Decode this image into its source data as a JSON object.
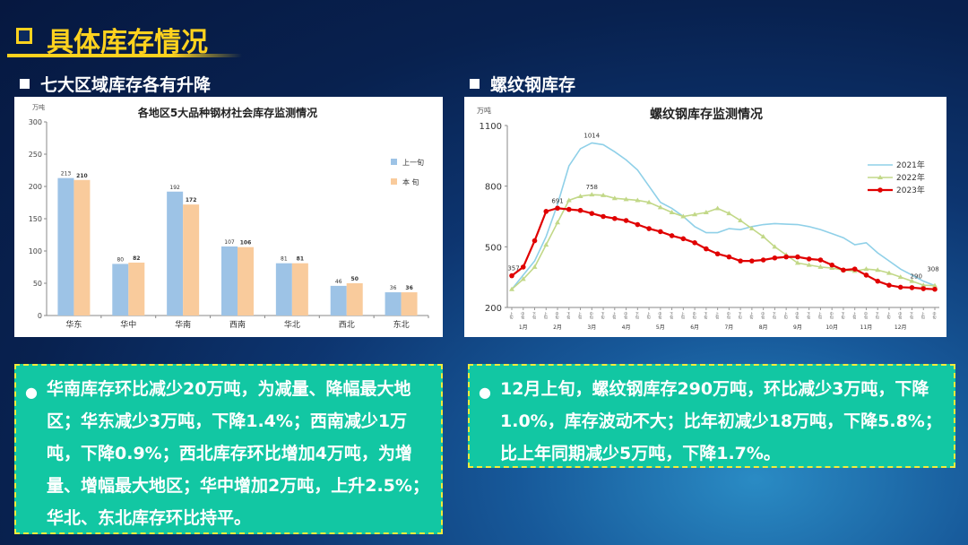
{
  "page": {
    "title": "具体库存情况",
    "left_heading": "七大区域库存各有升降",
    "right_heading": "螺纹钢库存",
    "left_note": "华南库存环比减少20万吨，为减量、降幅最大地区；华东减少3万吨，下降1.4%；西南减少1万吨，下降0.9%；西北库存环比增加4万吨，为增量、增幅最大地区；华中增加2万吨，上升2.5%；华北、东北库存环比持平。",
    "right_note": "12月上旬，螺纹钢库存290万吨，环比减少3万吨，下降1.0%，库存波动不大；比年初减少18万吨，下降5.8%；比上年同期减少5万吨，下降1.7%。",
    "bullet": "●"
  },
  "colors": {
    "title": "#ffd21e",
    "note_bg": "#12c7a3",
    "note_border": "#f2ec3a",
    "bar_prev": "#9dc3e6",
    "bar_curr": "#f9cb9c",
    "line_2021": "#8fd0e8",
    "line_2022": "#c2d888",
    "line_2023": "#e00000"
  },
  "chart_data": [
    {
      "type": "bar",
      "title": "各地区5大品种钢材社会库存监测情况",
      "unit": "万吨",
      "categories": [
        "华东",
        "华中",
        "华南",
        "西南",
        "华北",
        "西北",
        "东北"
      ],
      "series": [
        {
          "name": "上一旬",
          "values": [
            213,
            80,
            192,
            107,
            81,
            46,
            36
          ]
        },
        {
          "name": "本  旬",
          "values": [
            210,
            82,
            172,
            106,
            81,
            50,
            36
          ]
        }
      ],
      "ylim": [
        0,
        300
      ],
      "yticks": [
        0,
        50,
        100,
        150,
        200,
        250,
        300
      ],
      "legend": "right",
      "grid": false
    },
    {
      "type": "line",
      "title": "螺纹钢库存监测情况",
      "unit": "万吨",
      "ylim": [
        200,
        1100
      ],
      "yticks": [
        200,
        500,
        800,
        1100
      ],
      "months": [
        "1月",
        "2月",
        "3月",
        "4月",
        "5月",
        "6月",
        "7月",
        "8月",
        "9月",
        "10月",
        "11月",
        "12月"
      ],
      "x_tick_labels": [
        "上旬",
        "中旬",
        "下旬"
      ],
      "series": [
        {
          "name": "2021年",
          "values": [
            290,
            360,
            430,
            550,
            710,
            900,
            985,
            1014,
            1005,
            970,
            930,
            880,
            800,
            720,
            690,
            650,
            600,
            570,
            570,
            590,
            585,
            600,
            610,
            615,
            612,
            610,
            600,
            585,
            565,
            545,
            510,
            520,
            470,
            430,
            390,
            360,
            330,
            308
          ]
        },
        {
          "name": "2022年",
          "values": [
            290,
            340,
            400,
            510,
            620,
            730,
            750,
            758,
            755,
            740,
            735,
            730,
            720,
            695,
            670,
            650,
            660,
            670,
            690,
            665,
            630,
            590,
            550,
            500,
            460,
            420,
            410,
            400,
            395,
            385,
            380,
            390,
            385,
            370,
            350,
            330,
            310,
            308
          ]
        },
        {
          "name": "2023年",
          "values": [
            357,
            400,
            530,
            675,
            691,
            685,
            680,
            665,
            650,
            640,
            630,
            610,
            590,
            575,
            555,
            540,
            520,
            490,
            465,
            450,
            430,
            430,
            435,
            445,
            450,
            450,
            440,
            435,
            410,
            385,
            390,
            360,
            330,
            310,
            300,
            298,
            293,
            290
          ]
        }
      ],
      "annotations": [
        "1014",
        "758",
        "691",
        "357",
        "290",
        "308"
      ],
      "legend": "right",
      "grid": false
    }
  ]
}
